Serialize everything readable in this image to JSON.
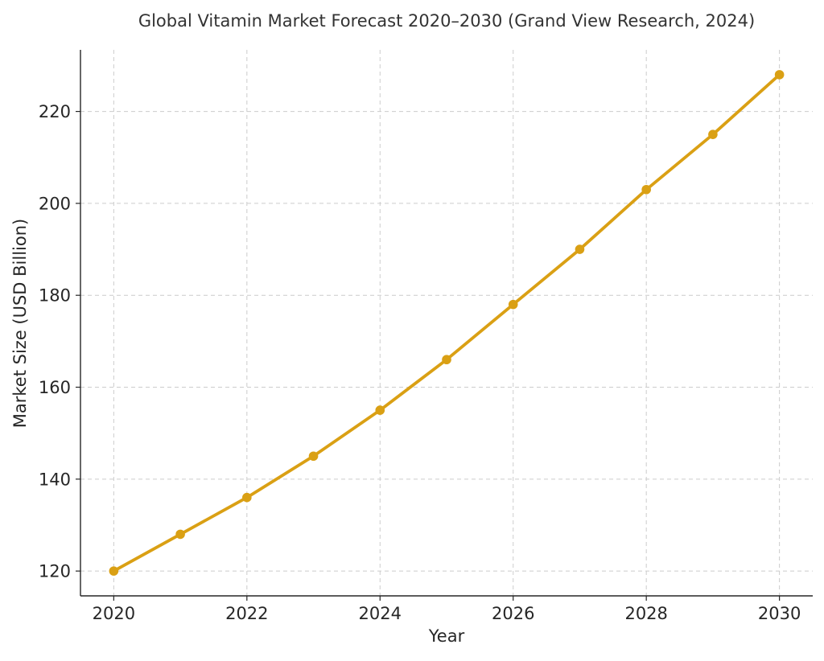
{
  "chart_data": {
    "type": "line",
    "title": "Global Vitamin Market Forecast 2020–2030 (Grand View Research, 2024)",
    "xlabel": "Year",
    "ylabel": "Market Size (USD Billion)",
    "x": [
      2020,
      2021,
      2022,
      2023,
      2024,
      2025,
      2026,
      2027,
      2028,
      2029,
      2030
    ],
    "series": [
      {
        "values": [
          120,
          128,
          136,
          145,
          155,
          166,
          178,
          190,
          203,
          215,
          228
        ],
        "color": "#DAA014",
        "marker": "circle"
      }
    ],
    "xticks": [
      2020,
      2022,
      2024,
      2026,
      2028,
      2030
    ],
    "yticks": [
      120,
      140,
      160,
      180,
      200,
      220
    ],
    "xlim": [
      2019.5,
      2030.5
    ],
    "ylim": [
      114.6,
      233.4
    ],
    "grid": true,
    "legend": "none"
  }
}
